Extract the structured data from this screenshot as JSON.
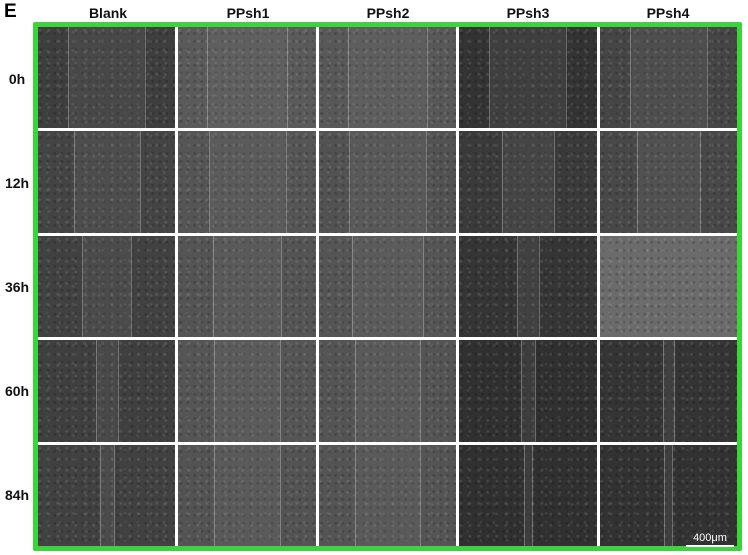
{
  "figure": {
    "panel_letter": "E",
    "columns": [
      "Blank",
      "PPsh1",
      "PPsh2",
      "PPsh3",
      "PPsh4"
    ],
    "rows": [
      "0h",
      "12h",
      "36h",
      "60h",
      "84h"
    ],
    "scale_bar": "400μm"
  },
  "colors": {
    "frame": "#3fd23f",
    "grid_lines": "#ffffff"
  }
}
